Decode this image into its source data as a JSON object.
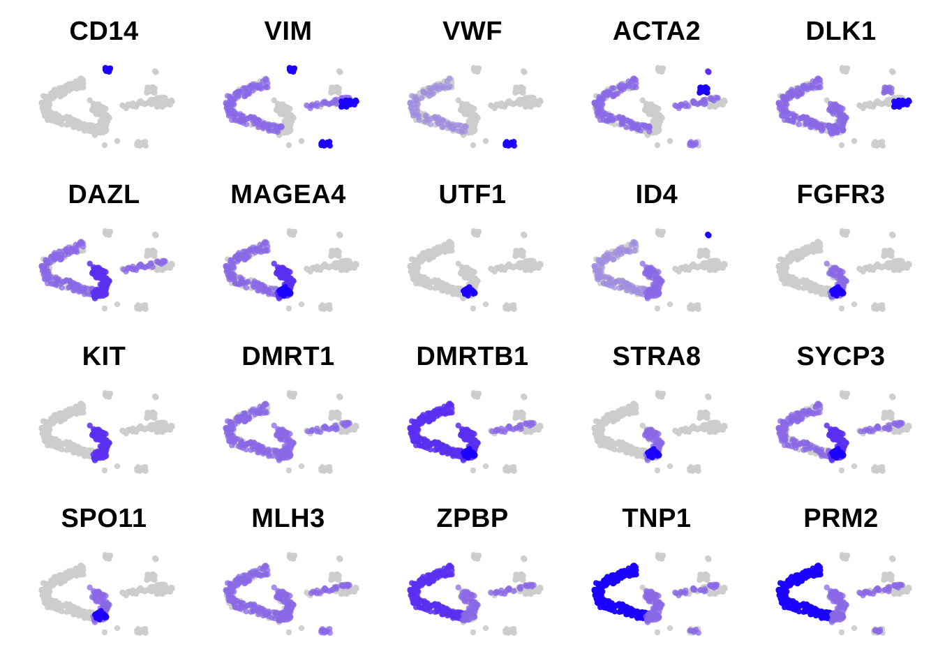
{
  "figure": {
    "type": "faceted feature plot",
    "grid": false,
    "colors": {
      "low": "#cccccc",
      "high": "#1a00ff"
    }
  },
  "chart_data": {
    "type": "scatter",
    "panels": [
      {
        "gene": "CD14",
        "high": [
          "top"
        ],
        "mid": [],
        "hot": [
          "top"
        ]
      },
      {
        "gene": "VIM",
        "high": [
          "top",
          "bottom_island",
          "right_cluster"
        ],
        "mid": [
          "arc",
          "right_arm"
        ],
        "hot": [
          "top",
          "bottom_island",
          "right_cluster"
        ]
      },
      {
        "gene": "VWF",
        "high": [
          "bottom_island"
        ],
        "mid": [
          "arc_light"
        ],
        "hot": [
          "bottom_island"
        ]
      },
      {
        "gene": "ACTA2",
        "high": [
          "right_top",
          "top_right_dot"
        ],
        "mid": [
          "arc",
          "bottom_island",
          "right_arm"
        ],
        "hot": [
          "right_top"
        ]
      },
      {
        "gene": "DLK1",
        "high": [
          "right_cluster"
        ],
        "mid": [
          "arc",
          "hook",
          "right_top"
        ],
        "hot": [
          "right_cluster"
        ]
      },
      {
        "gene": "DAZL",
        "high": [
          "hook"
        ],
        "mid": [
          "arc",
          "right_arm"
        ],
        "hot": []
      },
      {
        "gene": "MAGEA4",
        "high": [
          "hook"
        ],
        "mid": [
          "arc"
        ],
        "hot": [
          "hook_tip"
        ]
      },
      {
        "gene": "UTF1",
        "high": [
          "hook_tip"
        ],
        "mid": [],
        "hot": [
          "hook_tip"
        ]
      },
      {
        "gene": "ID4",
        "high": [],
        "mid": [
          "arc_light",
          "hook"
        ],
        "hot": [
          "top_right_dot"
        ]
      },
      {
        "gene": "FGFR3",
        "high": [
          "hook_tip"
        ],
        "mid": [
          "hook"
        ],
        "hot": [
          "hook_tip"
        ]
      },
      {
        "gene": "KIT",
        "high": [
          "hook"
        ],
        "mid": [],
        "hot": []
      },
      {
        "gene": "DMRT1",
        "high": [],
        "mid": [
          "arc",
          "hook",
          "right_arm"
        ],
        "hot": []
      },
      {
        "gene": "DMRTB1",
        "high": [
          "arc",
          "hook"
        ],
        "mid": [
          "right_arm"
        ],
        "hot": [
          "hook_tip"
        ]
      },
      {
        "gene": "STRA8",
        "high": [],
        "mid": [
          "hook"
        ],
        "hot": [
          "hook_tip"
        ]
      },
      {
        "gene": "SYCP3",
        "high": [
          "hook"
        ],
        "mid": [
          "arc",
          "right_arm"
        ],
        "hot": [
          "hook_tip"
        ]
      },
      {
        "gene": "SPO11",
        "high": [
          "hook_tip"
        ],
        "mid": [
          "hook"
        ],
        "hot": [
          "hook_tip"
        ]
      },
      {
        "gene": "MLH3",
        "high": [],
        "mid": [
          "arc",
          "hook",
          "right_arm",
          "bottom_island"
        ],
        "hot": []
      },
      {
        "gene": "ZPBP",
        "high": [
          "arc"
        ],
        "mid": [
          "hook",
          "right_arm"
        ],
        "hot": []
      },
      {
        "gene": "TNP1",
        "high": [
          "arc"
        ],
        "mid": [
          "hook",
          "right_arm",
          "bottom_island"
        ],
        "hot": [
          "arc"
        ]
      },
      {
        "gene": "PRM2",
        "high": [
          "arc"
        ],
        "mid": [
          "hook",
          "right_arm",
          "bottom_island"
        ],
        "hot": [
          "arc"
        ]
      }
    ]
  }
}
